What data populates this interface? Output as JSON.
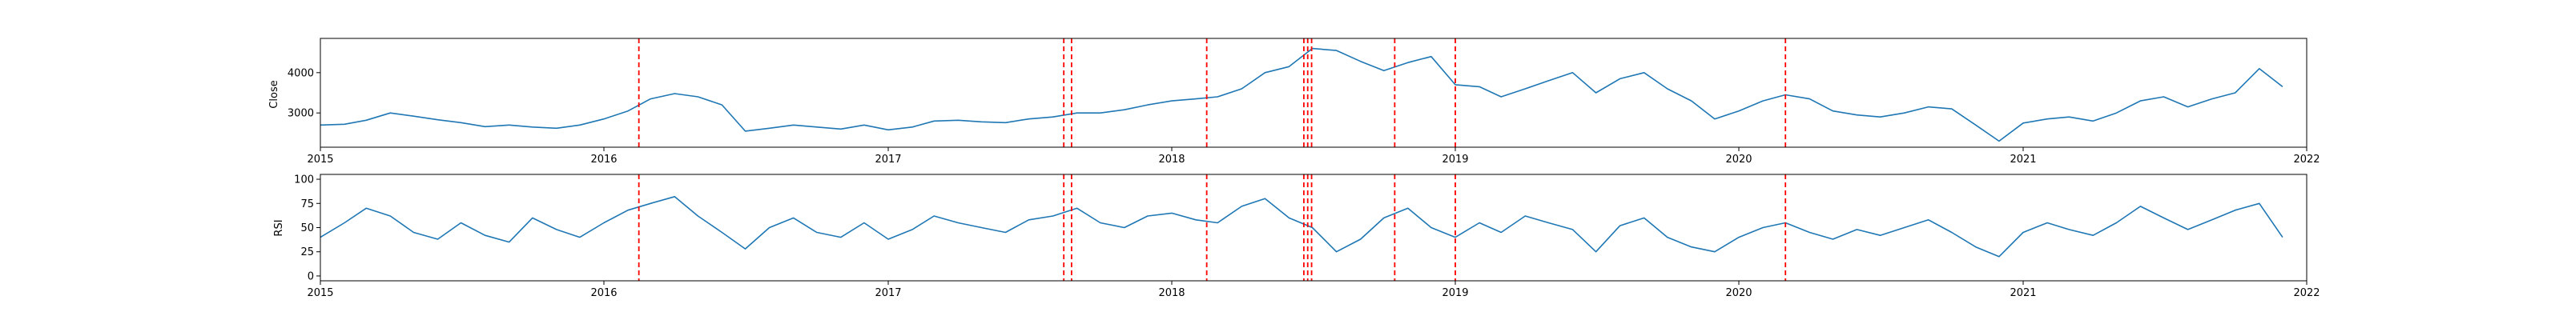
{
  "chart_data": [
    {
      "type": "line",
      "ylabel": "Close",
      "xlim": [
        "2015-01-01",
        "2022-01-01"
      ],
      "ylim": [
        2150,
        4850
      ],
      "yticks": [
        3000,
        4000
      ],
      "xticks": [
        "2015",
        "2016",
        "2017",
        "2018",
        "2019",
        "2020",
        "2021",
        "2022"
      ],
      "grid": false,
      "series": [
        {
          "color": "#1f77b4",
          "points": [
            [
              "2015-01-01",
              2700
            ],
            [
              "2015-02-01",
              2720
            ],
            [
              "2015-03-01",
              2820
            ],
            [
              "2015-04-01",
              3000
            ],
            [
              "2015-05-01",
              2920
            ],
            [
              "2015-06-01",
              2830
            ],
            [
              "2015-07-01",
              2760
            ],
            [
              "2015-08-01",
              2660
            ],
            [
              "2015-09-01",
              2700
            ],
            [
              "2015-10-01",
              2650
            ],
            [
              "2015-11-01",
              2620
            ],
            [
              "2015-12-01",
              2700
            ],
            [
              "2016-01-01",
              2850
            ],
            [
              "2016-02-01",
              3050
            ],
            [
              "2016-03-01",
              3350
            ],
            [
              "2016-04-01",
              3480
            ],
            [
              "2016-05-01",
              3400
            ],
            [
              "2016-06-01",
              3200
            ],
            [
              "2016-07-01",
              2550
            ],
            [
              "2016-08-01",
              2620
            ],
            [
              "2016-09-01",
              2700
            ],
            [
              "2016-10-01",
              2650
            ],
            [
              "2016-11-01",
              2600
            ],
            [
              "2016-12-01",
              2700
            ],
            [
              "2017-01-01",
              2580
            ],
            [
              "2017-02-01",
              2650
            ],
            [
              "2017-03-01",
              2800
            ],
            [
              "2017-04-01",
              2820
            ],
            [
              "2017-05-01",
              2780
            ],
            [
              "2017-06-01",
              2760
            ],
            [
              "2017-07-01",
              2850
            ],
            [
              "2017-08-01",
              2900
            ],
            [
              "2017-09-01",
              3000
            ],
            [
              "2017-10-01",
              3000
            ],
            [
              "2017-11-01",
              3080
            ],
            [
              "2017-12-01",
              3200
            ],
            [
              "2018-01-01",
              3300
            ],
            [
              "2018-02-01",
              3350
            ],
            [
              "2018-03-01",
              3400
            ],
            [
              "2018-04-01",
              3600
            ],
            [
              "2018-05-01",
              4000
            ],
            [
              "2018-06-01",
              4150
            ],
            [
              "2018-07-01",
              4600
            ],
            [
              "2018-08-01",
              4550
            ],
            [
              "2018-09-01",
              4280
            ],
            [
              "2018-10-01",
              4050
            ],
            [
              "2018-11-01",
              4250
            ],
            [
              "2018-12-01",
              4400
            ],
            [
              "2019-01-01",
              3700
            ],
            [
              "2019-02-01",
              3650
            ],
            [
              "2019-03-01",
              3400
            ],
            [
              "2019-04-01",
              3600
            ],
            [
              "2019-05-01",
              3800
            ],
            [
              "2019-06-01",
              4000
            ],
            [
              "2019-07-01",
              3500
            ],
            [
              "2019-08-01",
              3850
            ],
            [
              "2019-09-01",
              4000
            ],
            [
              "2019-10-01",
              3600
            ],
            [
              "2019-11-01",
              3300
            ],
            [
              "2019-12-01",
              2850
            ],
            [
              "2020-01-01",
              3050
            ],
            [
              "2020-02-01",
              3300
            ],
            [
              "2020-03-01",
              3450
            ],
            [
              "2020-04-01",
              3350
            ],
            [
              "2020-05-01",
              3050
            ],
            [
              "2020-06-01",
              2950
            ],
            [
              "2020-07-01",
              2900
            ],
            [
              "2020-08-01",
              3000
            ],
            [
              "2020-09-01",
              3150
            ],
            [
              "2020-10-01",
              3100
            ],
            [
              "2020-11-01",
              2700
            ],
            [
              "2020-12-01",
              2300
            ],
            [
              "2021-01-01",
              2750
            ],
            [
              "2021-02-01",
              2850
            ],
            [
              "2021-03-01",
              2900
            ],
            [
              "2021-04-01",
              2800
            ],
            [
              "2021-05-01",
              3000
            ],
            [
              "2021-06-01",
              3300
            ],
            [
              "2021-07-01",
              3400
            ],
            [
              "2021-08-01",
              3150
            ],
            [
              "2021-09-01",
              3350
            ],
            [
              "2021-10-01",
              3500
            ],
            [
              "2021-11-01",
              4100
            ],
            [
              "2021-12-01",
              3650
            ]
          ]
        }
      ],
      "vlines": {
        "color": "#ff0000",
        "style": "dashed",
        "dates": [
          "2016-02-15",
          "2017-08-15",
          "2017-08-25",
          "2018-02-15",
          "2018-06-20",
          "2018-06-25",
          "2018-06-30",
          "2018-10-15",
          "2019-01-01",
          "2020-03-01"
        ]
      }
    },
    {
      "type": "line",
      "ylabel": "RSI",
      "xlim": [
        "2015-01-01",
        "2022-01-01"
      ],
      "ylim": [
        -5,
        105
      ],
      "yticks": [
        0,
        25,
        50,
        75,
        100
      ],
      "xticks": [
        "2015",
        "2016",
        "2017",
        "2018",
        "2019",
        "2020",
        "2021",
        "2022"
      ],
      "grid": false,
      "series": [
        {
          "color": "#1f77b4",
          "points": [
            [
              "2015-01-01",
              40
            ],
            [
              "2015-02-01",
              55
            ],
            [
              "2015-03-01",
              70
            ],
            [
              "2015-04-01",
              62
            ],
            [
              "2015-05-01",
              45
            ],
            [
              "2015-06-01",
              38
            ],
            [
              "2015-07-01",
              55
            ],
            [
              "2015-08-01",
              42
            ],
            [
              "2015-09-01",
              35
            ],
            [
              "2015-10-01",
              60
            ],
            [
              "2015-11-01",
              48
            ],
            [
              "2015-12-01",
              40
            ],
            [
              "2016-01-01",
              55
            ],
            [
              "2016-02-01",
              68
            ],
            [
              "2016-03-01",
              75
            ],
            [
              "2016-04-01",
              82
            ],
            [
              "2016-05-01",
              62
            ],
            [
              "2016-06-01",
              45
            ],
            [
              "2016-07-01",
              28
            ],
            [
              "2016-08-01",
              50
            ],
            [
              "2016-09-01",
              60
            ],
            [
              "2016-10-01",
              45
            ],
            [
              "2016-11-01",
              40
            ],
            [
              "2016-12-01",
              55
            ],
            [
              "2017-01-01",
              38
            ],
            [
              "2017-02-01",
              48
            ],
            [
              "2017-03-01",
              62
            ],
            [
              "2017-04-01",
              55
            ],
            [
              "2017-05-01",
              50
            ],
            [
              "2017-06-01",
              45
            ],
            [
              "2017-07-01",
              58
            ],
            [
              "2017-08-01",
              62
            ],
            [
              "2017-09-01",
              70
            ],
            [
              "2017-10-01",
              55
            ],
            [
              "2017-11-01",
              50
            ],
            [
              "2017-12-01",
              62
            ],
            [
              "2018-01-01",
              65
            ],
            [
              "2018-02-01",
              58
            ],
            [
              "2018-03-01",
              55
            ],
            [
              "2018-04-01",
              72
            ],
            [
              "2018-05-01",
              80
            ],
            [
              "2018-06-01",
              60
            ],
            [
              "2018-07-01",
              50
            ],
            [
              "2018-08-01",
              25
            ],
            [
              "2018-09-01",
              38
            ],
            [
              "2018-10-01",
              60
            ],
            [
              "2018-11-01",
              70
            ],
            [
              "2018-12-01",
              50
            ],
            [
              "2019-01-01",
              40
            ],
            [
              "2019-02-01",
              55
            ],
            [
              "2019-03-01",
              45
            ],
            [
              "2019-04-01",
              62
            ],
            [
              "2019-05-01",
              55
            ],
            [
              "2019-06-01",
              48
            ],
            [
              "2019-07-01",
              25
            ],
            [
              "2019-08-01",
              52
            ],
            [
              "2019-09-01",
              60
            ],
            [
              "2019-10-01",
              40
            ],
            [
              "2019-11-01",
              30
            ],
            [
              "2019-12-01",
              25
            ],
            [
              "2020-01-01",
              40
            ],
            [
              "2020-02-01",
              50
            ],
            [
              "2020-03-01",
              55
            ],
            [
              "2020-04-01",
              45
            ],
            [
              "2020-05-01",
              38
            ],
            [
              "2020-06-01",
              48
            ],
            [
              "2020-07-01",
              42
            ],
            [
              "2020-08-01",
              50
            ],
            [
              "2020-09-01",
              58
            ],
            [
              "2020-10-01",
              45
            ],
            [
              "2020-11-01",
              30
            ],
            [
              "2020-12-01",
              20
            ],
            [
              "2021-01-01",
              45
            ],
            [
              "2021-02-01",
              55
            ],
            [
              "2021-03-01",
              48
            ],
            [
              "2021-04-01",
              42
            ],
            [
              "2021-05-01",
              55
            ],
            [
              "2021-06-01",
              72
            ],
            [
              "2021-07-01",
              60
            ],
            [
              "2021-08-01",
              48
            ],
            [
              "2021-09-01",
              58
            ],
            [
              "2021-10-01",
              68
            ],
            [
              "2021-11-01",
              75
            ],
            [
              "2021-12-01",
              40
            ]
          ]
        }
      ],
      "vlines": {
        "color": "#ff0000",
        "style": "dashed",
        "dates": [
          "2016-02-15",
          "2017-08-15",
          "2017-08-25",
          "2018-02-15",
          "2018-06-20",
          "2018-06-25",
          "2018-06-30",
          "2018-10-15",
          "2019-01-01",
          "2020-03-01"
        ]
      }
    }
  ]
}
